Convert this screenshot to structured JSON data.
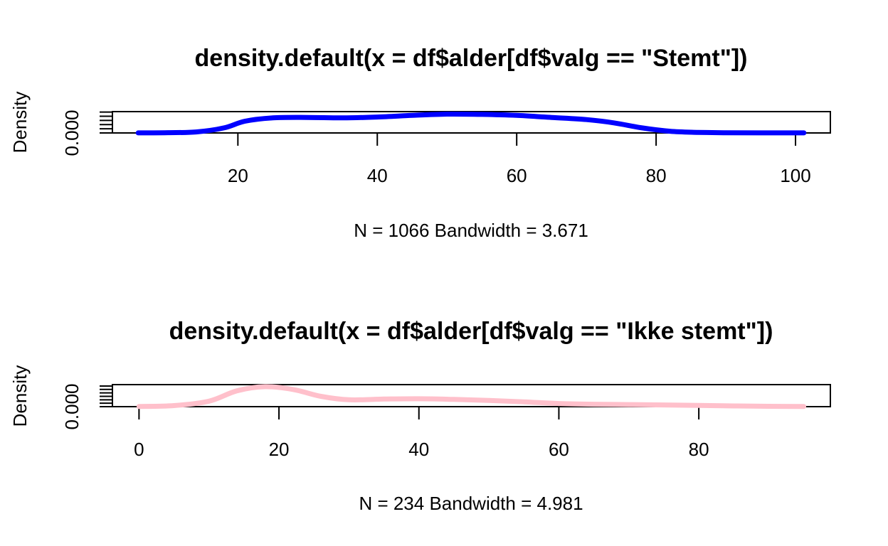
{
  "chart_data": [
    {
      "type": "line",
      "title": "density.default(x = df$alder[df$valg == \"Stemt\"])",
      "xlabel": "N = 1066   Bandwidth = 3.671",
      "ylabel": "Density",
      "xlim": [
        2,
        105
      ],
      "ylim": [
        0,
        0.0255
      ],
      "x_ticks": [
        20,
        40,
        60,
        80,
        100
      ],
      "y_tick_label": "0.000",
      "y_minor_ticks": [
        0.005,
        0.01,
        0.015,
        0.02,
        0.025
      ],
      "grid": false,
      "color": "#0000ff",
      "series": [
        {
          "x": [
            5.7,
            10,
            14,
            18,
            21,
            25,
            30,
            35,
            40,
            45,
            50,
            55,
            60,
            65,
            70,
            74,
            78,
            82,
            86,
            90,
            95,
            101.2
          ],
          "y": [
            0.0001,
            0.0003,
            0.0012,
            0.006,
            0.014,
            0.018,
            0.0185,
            0.018,
            0.019,
            0.021,
            0.0225,
            0.0222,
            0.021,
            0.0185,
            0.016,
            0.012,
            0.006,
            0.002,
            0.0007,
            0.0002,
            0.0001,
            0.0001
          ]
        }
      ]
    },
    {
      "type": "line",
      "title": "density.default(x = df$alder[df$valg == \"Ikke stemt\"])",
      "xlabel": "N = 234   Bandwidth = 4.981",
      "ylabel": "Density",
      "xlim": [
        -3.8,
        98.8
      ],
      "ylim": [
        0,
        0.032
      ],
      "x_ticks": [
        0,
        20,
        40,
        60,
        80
      ],
      "y_tick_label": "0.000",
      "y_minor_ticks": [
        0.005,
        0.01,
        0.015,
        0.02,
        0.025,
        0.03
      ],
      "grid": false,
      "color": "#ffc0cb",
      "series": [
        {
          "x": [
            0,
            5,
            10,
            14,
            18,
            22,
            26,
            30,
            35,
            40,
            45,
            50,
            55,
            60,
            65,
            70,
            75,
            80,
            85,
            90,
            95
          ],
          "y": [
            0.0003,
            0.0015,
            0.008,
            0.023,
            0.029,
            0.025,
            0.015,
            0.01,
            0.011,
            0.0115,
            0.0105,
            0.009,
            0.007,
            0.0045,
            0.0035,
            0.003,
            0.0025,
            0.0018,
            0.001,
            0.0005,
            0.0002
          ]
        }
      ]
    }
  ]
}
